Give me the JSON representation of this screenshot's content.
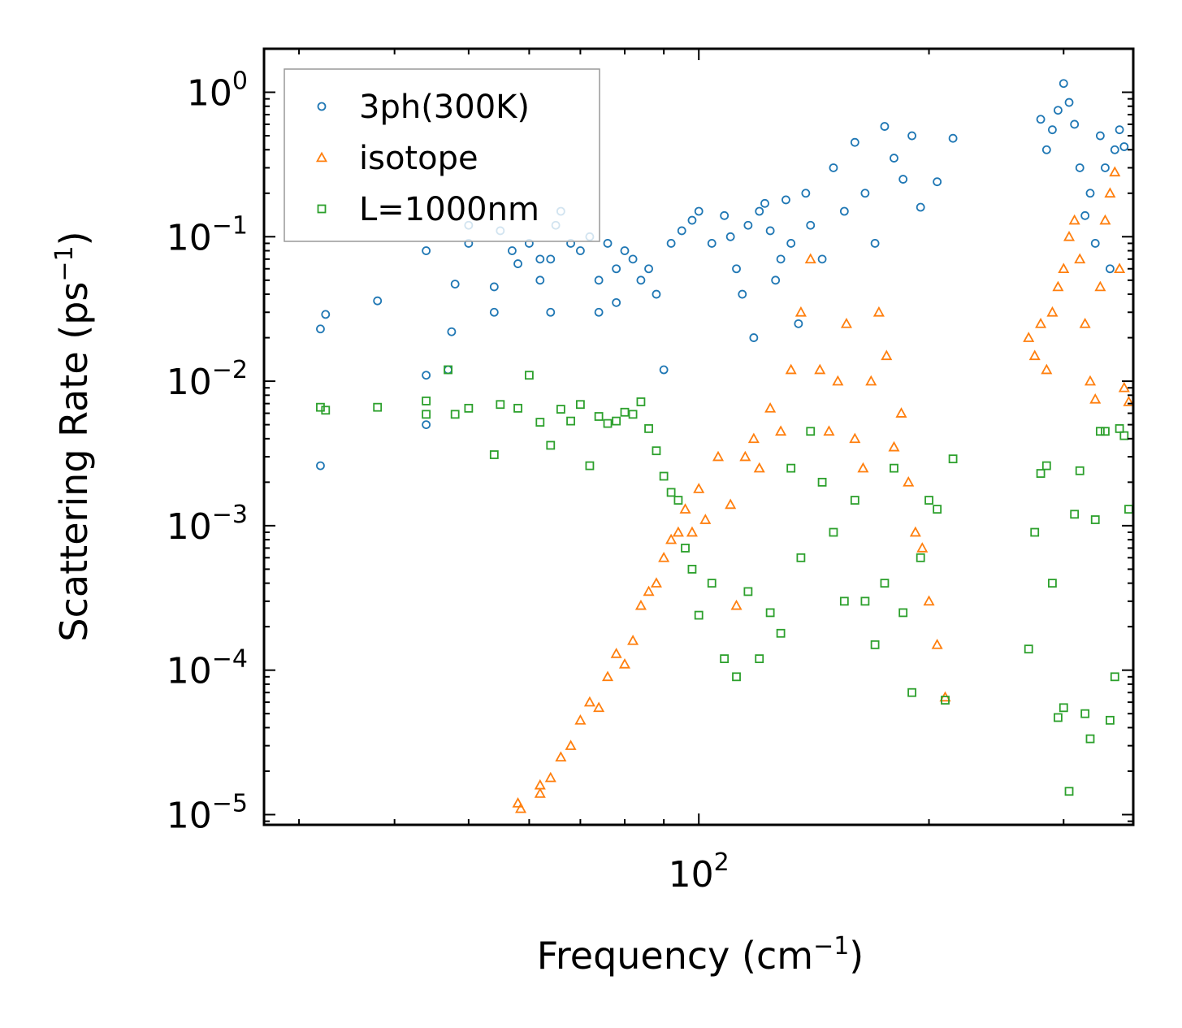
{
  "chart_data": {
    "type": "scatter",
    "title": "",
    "xlabel": "Frequency (cm",
    "xlabel_sup": "−1",
    "xlabel_end": ")",
    "ylabel": "Scattering Rate (ps",
    "ylabel_sup": "−1",
    "ylabel_end": ")",
    "xscale": "log",
    "yscale": "log",
    "xlim": [
      27,
      370
    ],
    "ylim": [
      8.5e-06,
      2.0
    ],
    "x_major_ticks": [
      {
        "value": 100,
        "base": "10",
        "exp": "2"
      }
    ],
    "y_major_ticks": [
      {
        "value": 1,
        "base": "10",
        "exp": "0"
      },
      {
        "value": 0.1,
        "base": "10",
        "exp": "−1"
      },
      {
        "value": 0.01,
        "base": "10",
        "exp": "−2"
      },
      {
        "value": 0.001,
        "base": "10",
        "exp": "−3"
      },
      {
        "value": 0.0001,
        "base": "10",
        "exp": "−4"
      },
      {
        "value": 1e-05,
        "base": "10",
        "exp": "−5"
      }
    ],
    "legend_position": "top-left",
    "grid": false,
    "series": [
      {
        "name": "3ph(300K)",
        "marker": "circle",
        "color": "#1f77b4",
        "points": [
          [
            32,
            0.0026
          ],
          [
            32,
            0.023
          ],
          [
            32.5,
            0.029
          ],
          [
            38,
            0.036
          ],
          [
            44,
            0.011
          ],
          [
            44,
            0.005
          ],
          [
            44,
            0.08
          ],
          [
            47,
            0.012
          ],
          [
            47.5,
            0.022
          ],
          [
            48,
            0.047
          ],
          [
            50,
            0.12
          ],
          [
            50,
            0.09
          ],
          [
            54,
            0.03
          ],
          [
            54,
            0.045
          ],
          [
            55,
            0.11
          ],
          [
            57,
            0.08
          ],
          [
            58,
            0.065
          ],
          [
            60,
            0.09
          ],
          [
            62,
            0.07
          ],
          [
            62,
            0.05
          ],
          [
            64,
            0.03
          ],
          [
            64,
            0.07
          ],
          [
            65,
            0.12
          ],
          [
            66,
            0.15
          ],
          [
            68,
            0.09
          ],
          [
            70,
            0.08
          ],
          [
            72,
            0.1
          ],
          [
            74,
            0.05
          ],
          [
            74,
            0.03
          ],
          [
            76,
            0.09
          ],
          [
            78,
            0.06
          ],
          [
            78,
            0.035
          ],
          [
            80,
            0.08
          ],
          [
            82,
            0.07
          ],
          [
            84,
            0.05
          ],
          [
            86,
            0.06
          ],
          [
            88,
            0.04
          ],
          [
            90,
            0.012
          ],
          [
            92,
            0.09
          ],
          [
            95,
            0.11
          ],
          [
            98,
            0.13
          ],
          [
            100,
            0.15
          ],
          [
            104,
            0.09
          ],
          [
            108,
            0.14
          ],
          [
            110,
            0.1
          ],
          [
            112,
            0.06
          ],
          [
            114,
            0.04
          ],
          [
            116,
            0.12
          ],
          [
            118,
            0.02
          ],
          [
            120,
            0.15
          ],
          [
            122,
            0.17
          ],
          [
            124,
            0.11
          ],
          [
            126,
            0.05
          ],
          [
            128,
            0.07
          ],
          [
            130,
            0.18
          ],
          [
            132,
            0.09
          ],
          [
            135,
            0.025
          ],
          [
            138,
            0.2
          ],
          [
            140,
            0.12
          ],
          [
            145,
            0.07
          ],
          [
            150,
            0.3
          ],
          [
            155,
            0.15
          ],
          [
            160,
            0.45
          ],
          [
            165,
            0.2
          ],
          [
            170,
            0.09
          ],
          [
            175,
            0.58
          ],
          [
            180,
            0.35
          ],
          [
            185,
            0.25
          ],
          [
            190,
            0.5
          ],
          [
            195,
            0.16
          ],
          [
            205,
            0.24
          ],
          [
            215,
            0.48
          ],
          [
            280,
            0.65
          ],
          [
            285,
            0.4
          ],
          [
            290,
            0.55
          ],
          [
            295,
            0.75
          ],
          [
            300,
            1.15
          ],
          [
            305,
            0.85
          ],
          [
            310,
            0.6
          ],
          [
            315,
            0.3
          ],
          [
            320,
            0.14
          ],
          [
            325,
            0.2
          ],
          [
            330,
            0.09
          ],
          [
            335,
            0.5
          ],
          [
            340,
            0.3
          ],
          [
            345,
            0.06
          ],
          [
            350,
            0.4
          ],
          [
            355,
            0.55
          ],
          [
            360,
            0.42
          ]
        ]
      },
      {
        "name": "isotope",
        "marker": "triangle",
        "color": "#ff7f0e",
        "points": [
          [
            58,
            1.2e-05
          ],
          [
            58.5,
            1.1e-05
          ],
          [
            62,
            1.6e-05
          ],
          [
            62,
            1.4e-05
          ],
          [
            64,
            1.8e-05
          ],
          [
            66,
            2.5e-05
          ],
          [
            68,
            3e-05
          ],
          [
            70,
            4.5e-05
          ],
          [
            72,
            6e-05
          ],
          [
            74,
            5.5e-05
          ],
          [
            76,
            9e-05
          ],
          [
            78,
            0.00013
          ],
          [
            80,
            0.00011
          ],
          [
            82,
            0.00016
          ],
          [
            84,
            0.00028
          ],
          [
            86,
            0.00035
          ],
          [
            88,
            0.0004
          ],
          [
            90,
            0.0006
          ],
          [
            92,
            0.0008
          ],
          [
            94,
            0.0009
          ],
          [
            96,
            0.0013
          ],
          [
            98,
            0.0009
          ],
          [
            100,
            0.0018
          ],
          [
            102,
            0.0011
          ],
          [
            106,
            0.003
          ],
          [
            110,
            0.0014
          ],
          [
            112,
            0.00028
          ],
          [
            115,
            0.003
          ],
          [
            118,
            0.004
          ],
          [
            120,
            0.0025
          ],
          [
            124,
            0.0065
          ],
          [
            128,
            0.0045
          ],
          [
            132,
            0.012
          ],
          [
            136,
            0.03
          ],
          [
            140,
            0.07
          ],
          [
            144,
            0.012
          ],
          [
            148,
            0.0045
          ],
          [
            152,
            0.01
          ],
          [
            156,
            0.025
          ],
          [
            160,
            0.004
          ],
          [
            164,
            0.0025
          ],
          [
            168,
            0.01
          ],
          [
            172,
            0.03
          ],
          [
            176,
            0.015
          ],
          [
            180,
            0.0035
          ],
          [
            184,
            0.006
          ],
          [
            188,
            0.002
          ],
          [
            192,
            0.0009
          ],
          [
            196,
            0.0007
          ],
          [
            200,
            0.0003
          ],
          [
            205,
            0.00015
          ],
          [
            210,
            6.5e-05
          ],
          [
            270,
            0.02
          ],
          [
            275,
            0.015
          ],
          [
            280,
            0.025
          ],
          [
            285,
            0.012
          ],
          [
            290,
            0.03
          ],
          [
            295,
            0.045
          ],
          [
            300,
            0.06
          ],
          [
            305,
            0.1
          ],
          [
            310,
            0.13
          ],
          [
            315,
            0.07
          ],
          [
            320,
            0.025
          ],
          [
            325,
            0.01
          ],
          [
            330,
            0.0075
          ],
          [
            335,
            0.045
          ],
          [
            340,
            0.13
          ],
          [
            345,
            0.2
          ],
          [
            350,
            0.28
          ],
          [
            355,
            0.06
          ],
          [
            360,
            0.009
          ],
          [
            365,
            0.0072
          ]
        ]
      },
      {
        "name": "L=1000nm",
        "marker": "square",
        "color": "#2ca02c",
        "points": [
          [
            32,
            0.0066
          ],
          [
            32.5,
            0.0063
          ],
          [
            38,
            0.0066
          ],
          [
            44,
            0.0073
          ],
          [
            44,
            0.0059
          ],
          [
            47,
            0.012
          ],
          [
            48,
            0.0059
          ],
          [
            50,
            0.0065
          ],
          [
            54,
            0.0031
          ],
          [
            55,
            0.0069
          ],
          [
            58,
            0.0065
          ],
          [
            60,
            0.011
          ],
          [
            62,
            0.0052
          ],
          [
            64,
            0.0036
          ],
          [
            66,
            0.0064
          ],
          [
            68,
            0.0053
          ],
          [
            70,
            0.0069
          ],
          [
            72,
            0.0026
          ],
          [
            74,
            0.0057
          ],
          [
            76,
            0.0051
          ],
          [
            78,
            0.0053
          ],
          [
            80,
            0.0061
          ],
          [
            82,
            0.0059
          ],
          [
            84,
            0.0072
          ],
          [
            86,
            0.0047
          ],
          [
            88,
            0.0033
          ],
          [
            90,
            0.0022
          ],
          [
            92,
            0.0017
          ],
          [
            94,
            0.0015
          ],
          [
            96,
            0.0007
          ],
          [
            98,
            0.0005
          ],
          [
            100,
            0.00024
          ],
          [
            104,
            0.0004
          ],
          [
            108,
            0.00012
          ],
          [
            112,
            9e-05
          ],
          [
            116,
            0.00035
          ],
          [
            120,
            0.00012
          ],
          [
            124,
            0.00025
          ],
          [
            128,
            0.00018
          ],
          [
            132,
            0.0025
          ],
          [
            136,
            0.0006
          ],
          [
            140,
            0.0045
          ],
          [
            145,
            0.002
          ],
          [
            150,
            0.0009
          ],
          [
            155,
            0.0003
          ],
          [
            160,
            0.0015
          ],
          [
            165,
            0.0003
          ],
          [
            170,
            0.00015
          ],
          [
            175,
            0.0004
          ],
          [
            180,
            0.0025
          ],
          [
            185,
            0.00025
          ],
          [
            190,
            7e-05
          ],
          [
            195,
            0.0006
          ],
          [
            200,
            0.0015
          ],
          [
            205,
            0.0013
          ],
          [
            210,
            6.2e-05
          ],
          [
            215,
            0.0029
          ],
          [
            270,
            0.00014
          ],
          [
            275,
            0.0009
          ],
          [
            280,
            0.0023
          ],
          [
            285,
            0.0026
          ],
          [
            290,
            0.0004
          ],
          [
            295,
            4.7e-05
          ],
          [
            300,
            5.5e-05
          ],
          [
            305,
            1.45e-05
          ],
          [
            310,
            0.0012
          ],
          [
            315,
            0.0024
          ],
          [
            320,
            5e-05
          ],
          [
            325,
            3.35e-05
          ],
          [
            330,
            0.0011
          ],
          [
            335,
            0.0045
          ],
          [
            340,
            0.0045
          ],
          [
            345,
            4.5e-05
          ],
          [
            350,
            9e-05
          ],
          [
            355,
            0.0047
          ],
          [
            360,
            0.0042
          ],
          [
            365,
            0.0013
          ]
        ]
      }
    ]
  }
}
